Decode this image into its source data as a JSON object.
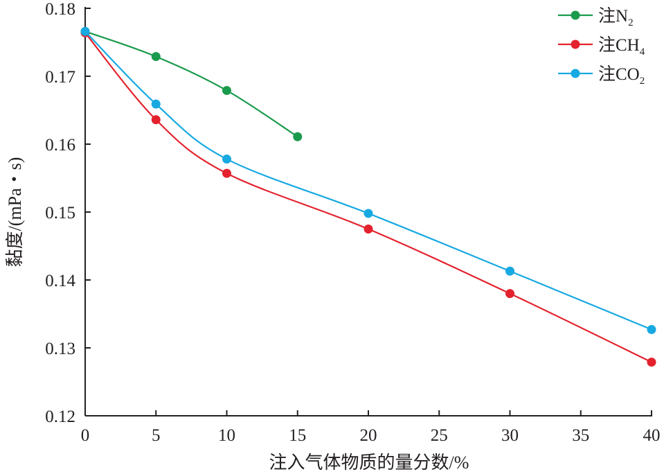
{
  "chart_data": {
    "type": "line",
    "xlabel": "注入气体物质的量分数/%",
    "ylabel": "黏度/(mPa・s)",
    "xlim": [
      0,
      40
    ],
    "ylim": [
      0.12,
      0.18
    ],
    "x_ticks": [
      "0",
      "5",
      "10",
      "15",
      "20",
      "25",
      "30",
      "35",
      "40"
    ],
    "y_ticks": [
      "0.12",
      "0.13",
      "0.14",
      "0.15",
      "0.16",
      "0.17",
      "0.18"
    ],
    "grid": false,
    "legend_position": "top-right",
    "series": [
      {
        "name": "注N2",
        "legend_main": "注N",
        "legend_sub": "2",
        "color": "#1a9a4c",
        "x": [
          0,
          5,
          10,
          15
        ],
        "y": [
          0.1766,
          0.1729,
          0.1679,
          0.1611
        ]
      },
      {
        "name": "注CH4",
        "legend_main": "注CH",
        "legend_sub": "4",
        "color": "#e3222d",
        "x": [
          0,
          5,
          10,
          20,
          30,
          40
        ],
        "y": [
          0.1764,
          0.1636,
          0.1557,
          0.1475,
          0.138,
          0.1279
        ]
      },
      {
        "name": "注CO2",
        "legend_main": "注CO",
        "legend_sub": "2",
        "color": "#17a9e1",
        "x": [
          0,
          5,
          10,
          20,
          30,
          40
        ],
        "y": [
          0.1766,
          0.1659,
          0.1578,
          0.1498,
          0.1413,
          0.1327
        ]
      }
    ]
  }
}
